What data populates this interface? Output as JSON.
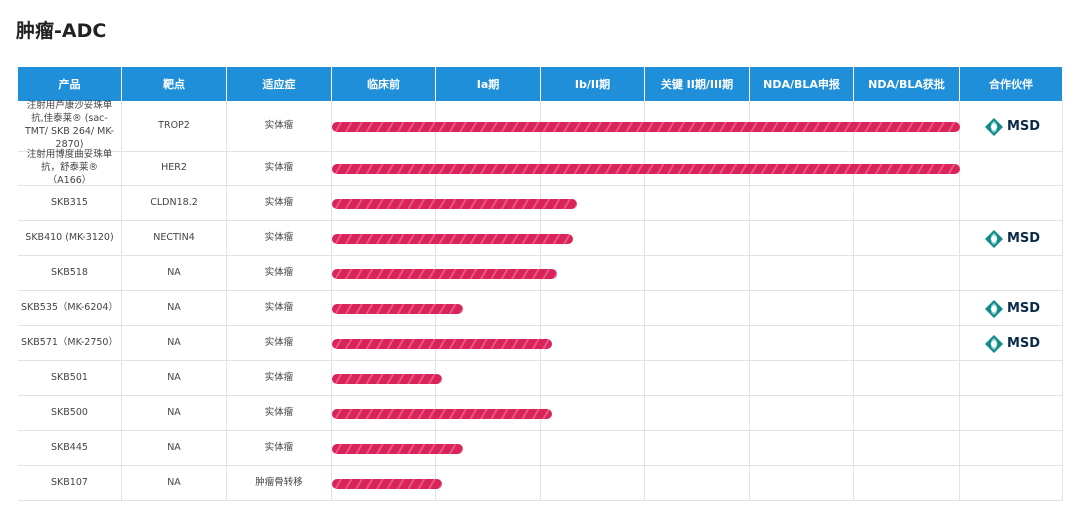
{
  "header": {
    "title": "肿瘤-ADC"
  },
  "table": {
    "columns": [
      "产品",
      "靶点",
      "适应症",
      "临床前",
      "Ia期",
      "Ib/II期",
      "关键 II期/III期",
      "NDA/BLA申报",
      "NDA/BLA获批",
      "合作伙伴"
    ],
    "rows": [
      {
        "product": "注射用芦康沙妥珠单抗,佳泰莱® (sac-TMT/ SKB 264/ MK-2870)",
        "target": "TROP2",
        "indication": "实体瘤",
        "progress": 6.0,
        "partner": "MSD"
      },
      {
        "product": "注射用博度曲妥珠单抗，舒泰莱® （A166）",
        "target": "HER2",
        "indication": "实体瘤",
        "progress": 6.0
      },
      {
        "product": "SKB315",
        "target": "CLDN18.2",
        "indication": "实体瘤",
        "progress": 2.34
      },
      {
        "product": "SKB410 (MK-3120)",
        "target": "NECTIN4",
        "indication": "实体瘤",
        "progress": 2.3,
        "partner": "MSD"
      },
      {
        "product": "SKB518",
        "target": "NA",
        "indication": "实体瘤",
        "progress": 2.15
      },
      {
        "product": "SKB535（MK-6204）",
        "target": "NA",
        "indication": "实体瘤",
        "progress": 1.25,
        "partner": "MSD"
      },
      {
        "product": "SKB571（MK-2750）",
        "target": "NA",
        "indication": "实体瘤",
        "progress": 2.1,
        "partner": "MSD"
      },
      {
        "product": "SKB501",
        "target": "NA",
        "indication": "实体瘤",
        "progress": 1.05
      },
      {
        "product": "SKB500",
        "target": "NA",
        "indication": "实体瘤",
        "progress": 2.1
      },
      {
        "product": "SKB445",
        "target": "NA",
        "indication": "实体瘤",
        "progress": 1.25
      },
      {
        "product": "SKB107",
        "target": "NA",
        "indication": "肿瘤骨转移",
        "progress": 1.05
      }
    ]
  }
}
